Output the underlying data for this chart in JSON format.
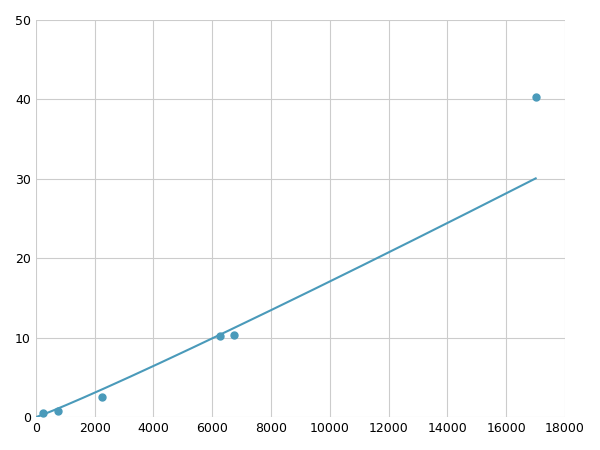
{
  "x": [
    250,
    750,
    2250,
    6500,
    17000
  ],
  "y": [
    0.5,
    0.8,
    2.5,
    10.25,
    40.3
  ],
  "x_markers": [
    250,
    750,
    2250,
    6250,
    6750,
    17000
  ],
  "y_markers": [
    0.5,
    0.8,
    2.5,
    10.2,
    10.3,
    40.3
  ],
  "line_color": "#4a9aba",
  "marker_color": "#4a9aba",
  "marker_size": 5,
  "xlim": [
    0,
    18000
  ],
  "ylim": [
    0,
    50
  ],
  "xticks": [
    0,
    2000,
    4000,
    6000,
    8000,
    10000,
    12000,
    14000,
    16000,
    18000
  ],
  "yticks": [
    0,
    10,
    20,
    30,
    40,
    50
  ],
  "grid_color": "#cccccc",
  "bg_color": "#ffffff",
  "linewidth": 1.5,
  "figsize": [
    6.0,
    4.5
  ],
  "dpi": 100
}
